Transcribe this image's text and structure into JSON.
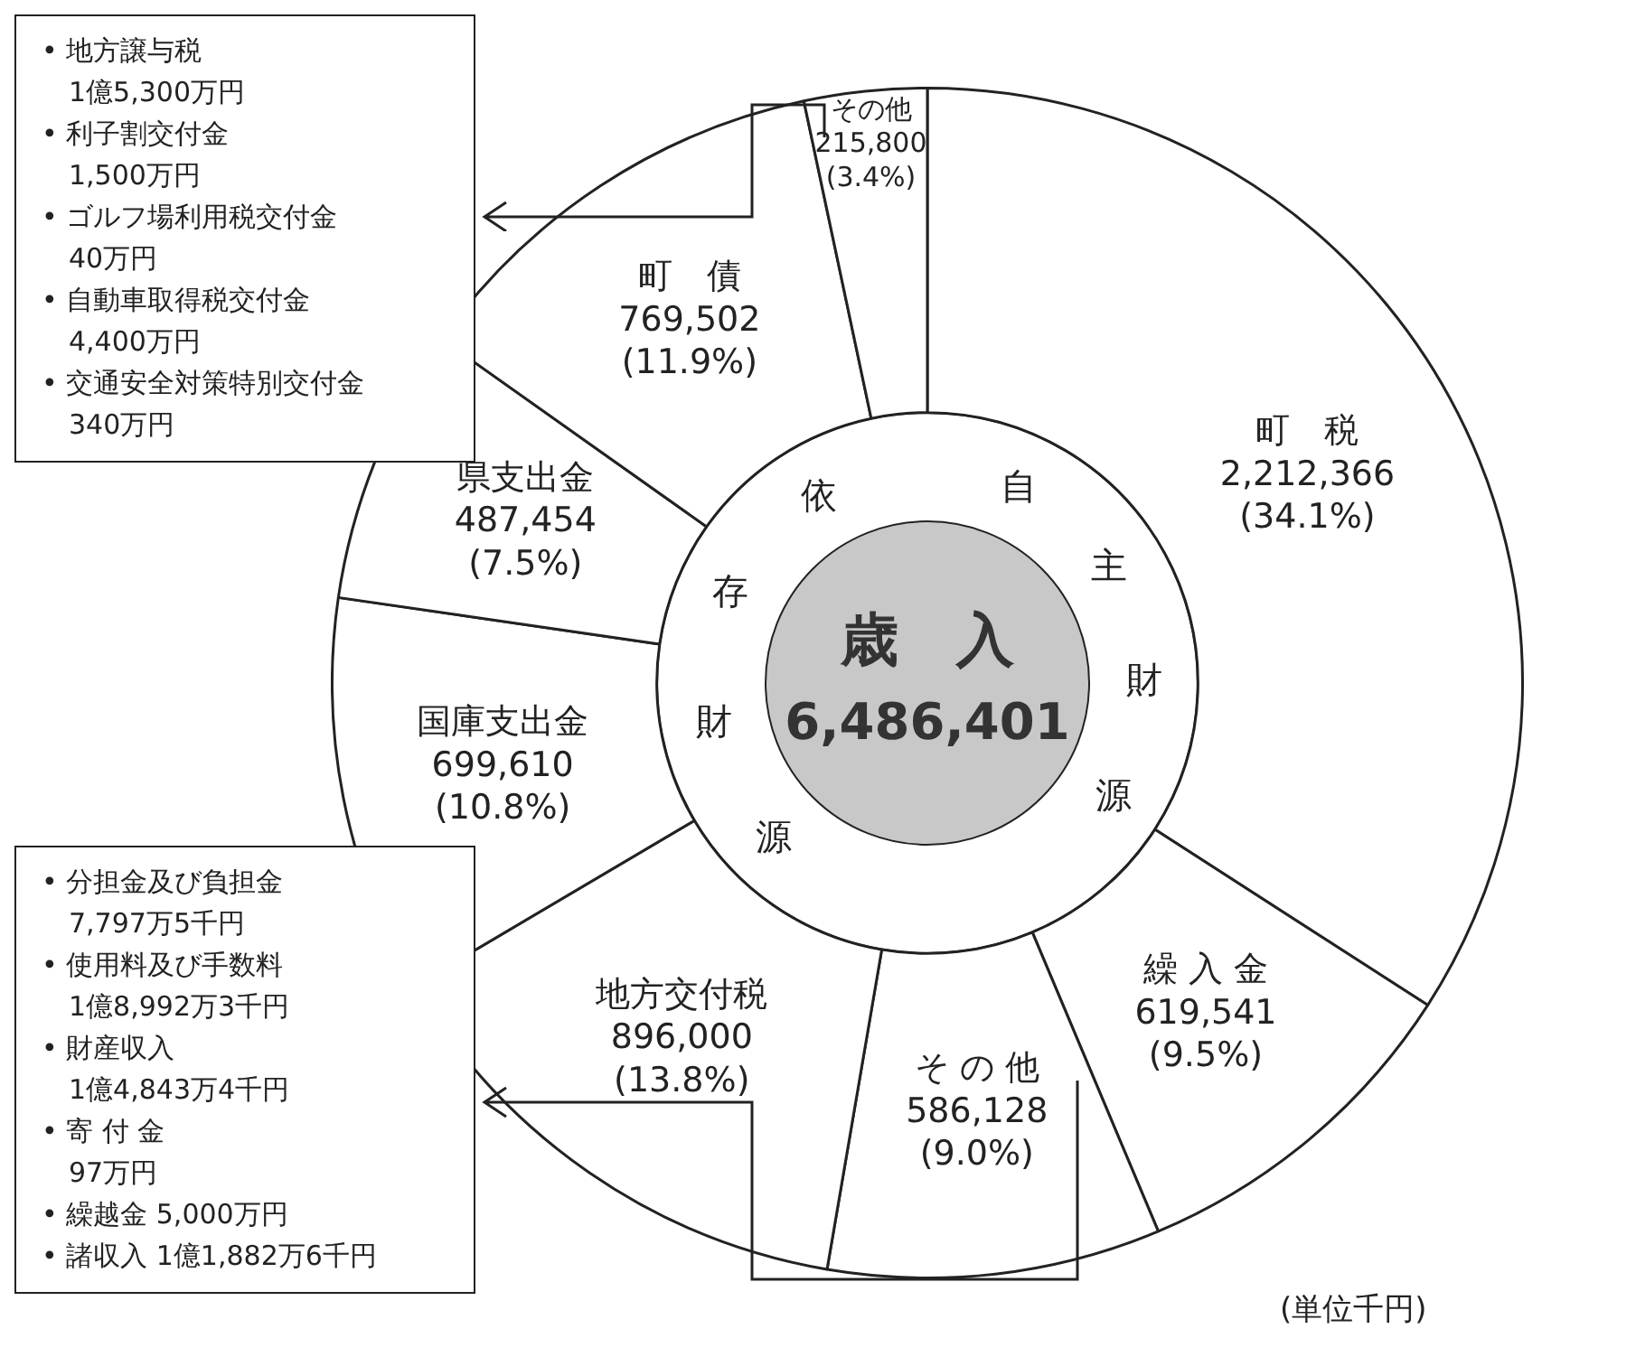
{
  "chart_data": {
    "type": "donut",
    "title": "歳　入",
    "subtitle": "6,486,401",
    "categories": [
      "町　税",
      "繰 入 金",
      "そ の 他",
      "地方交付税",
      "国庫支出金",
      "県支出金",
      "町　債",
      "その他"
    ],
    "values": [
      2212366,
      619541,
      586128,
      896000,
      699610,
      487454,
      769502,
      215800
    ],
    "value_labels": [
      "2,212,366 (34.1%)",
      "619,541 (9.5%)",
      "586,128 (9.0%)",
      "896,000 (13.8%)",
      "699,610 (10.8%)",
      "487,454 (7.5%)",
      "769,502 (11.9%)",
      "215,800 (3.4%)"
    ],
    "colors": [
      "#ffffff",
      "#ffffff",
      "#ffffff",
      "#ffffff",
      "#ffffff",
      "#ffffff",
      "#ffffff",
      "#ffffff"
    ],
    "legend": false,
    "annotations": [
      "自主財源",
      "依存財源",
      "• 地方譲与税\n　1億5,300万円\n• 利子割交付金\n　1,500万円\n• ゴルフ場利用税交付金\n　40万円\n• 自動車取得税交付金\n　4,400万円\n• 交通安全対策特別交付金\n　340万円",
      "• 分担金及び負担金\n　7,797万5千円\n• 使用料及び手数料\n　1億8,992万3千円\n• 財産収入\n　1億4,843万4千円\n• 寄 付 金\n　97万円\n• 繰越金 5,000万円\n• 諸収入 1億1,882万6千円",
      "(単位千円)"
    ]
  }
}
